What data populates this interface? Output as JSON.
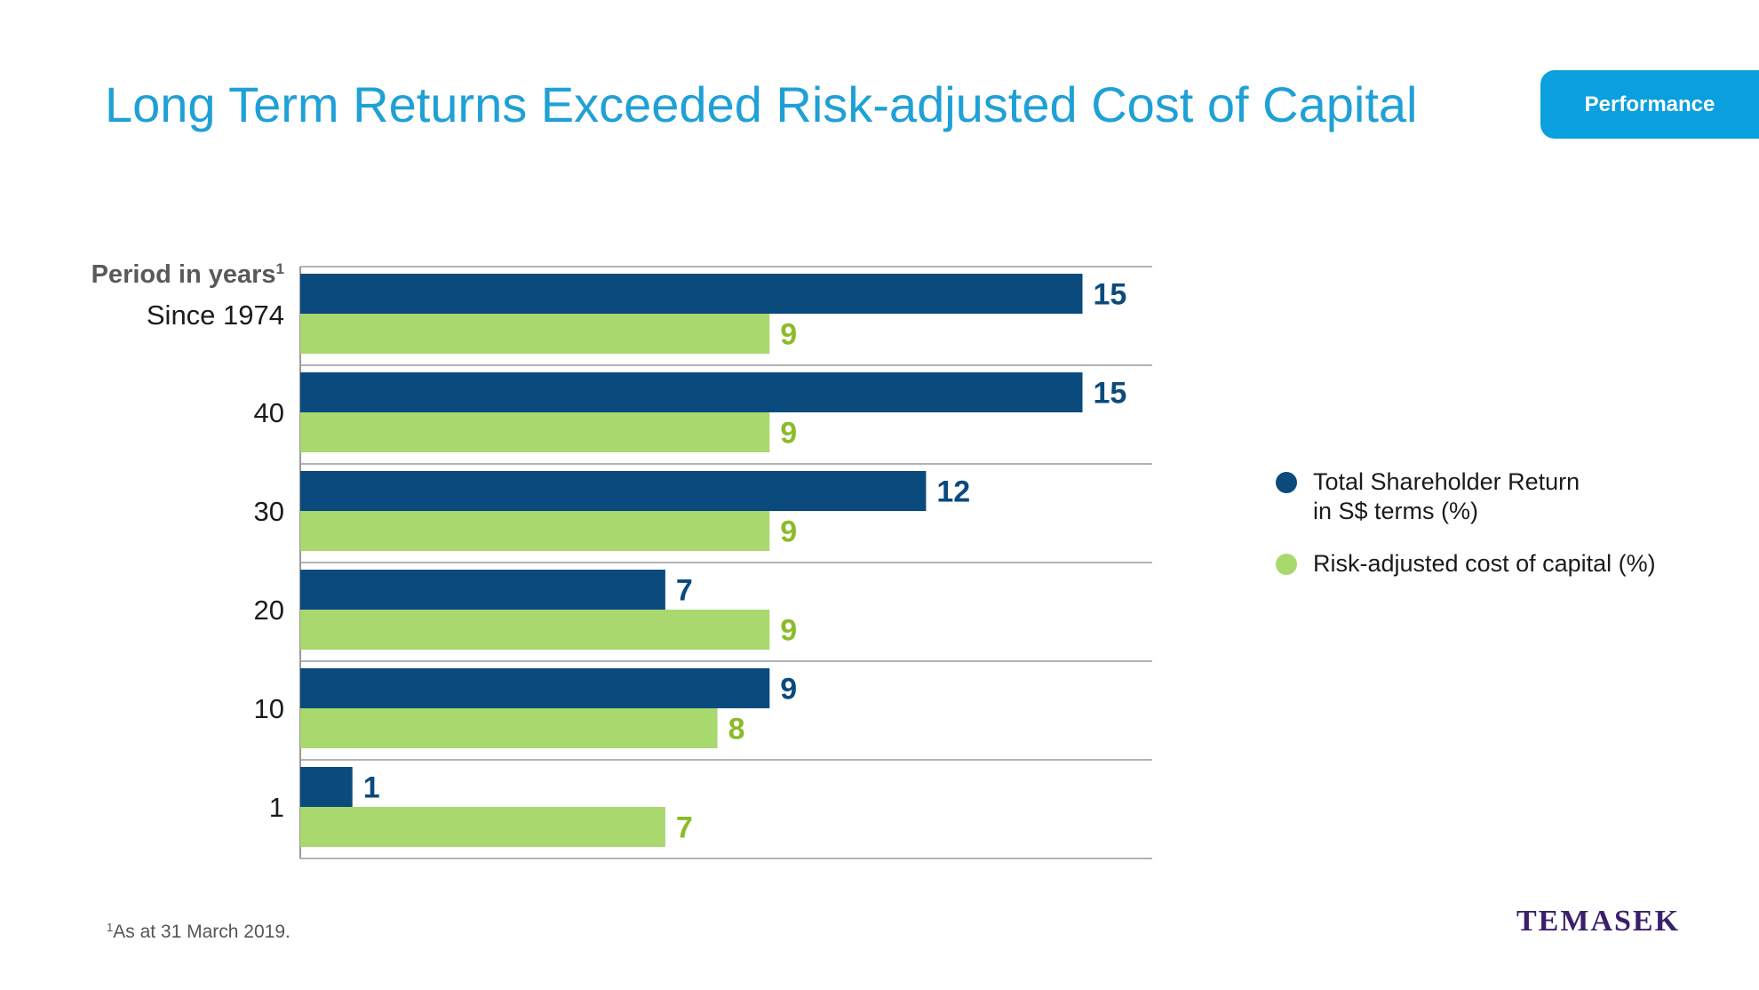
{
  "title": "Long Term Returns Exceeded Risk-adjusted Cost of Capital",
  "tab_label": "Performance",
  "colors": {
    "title": "#1fa0d6",
    "tab": "#0a9fdf",
    "tsr": "#0b4a7d",
    "cost": "#a9d86e",
    "cost_label": "#8cbb2a",
    "logo": "#3b1f6b"
  },
  "chart_data": {
    "type": "bar",
    "orientation": "horizontal",
    "category_header": "Period in years",
    "category_header_sup": "1",
    "categories": [
      "Since 1974",
      "40",
      "30",
      "20",
      "10",
      "1"
    ],
    "series": [
      {
        "name": "Total Shareholder Return in S$ terms (%)",
        "values": [
          15,
          15,
          12,
          7,
          9,
          1
        ]
      },
      {
        "name": "Risk-adjusted cost of capital (%)",
        "values": [
          9,
          9,
          9,
          9,
          8,
          7
        ]
      }
    ],
    "legend_position": "right",
    "grid": false
  },
  "legend": {
    "tsr_line1": "Total Shareholder Return",
    "tsr_line2": "in S$ terms (%)",
    "cost": "Risk-adjusted cost of capital (%)"
  },
  "footnote": {
    "sup": "1",
    "text": "As at 31 March 2019."
  },
  "logo_text": "TEMASEK"
}
